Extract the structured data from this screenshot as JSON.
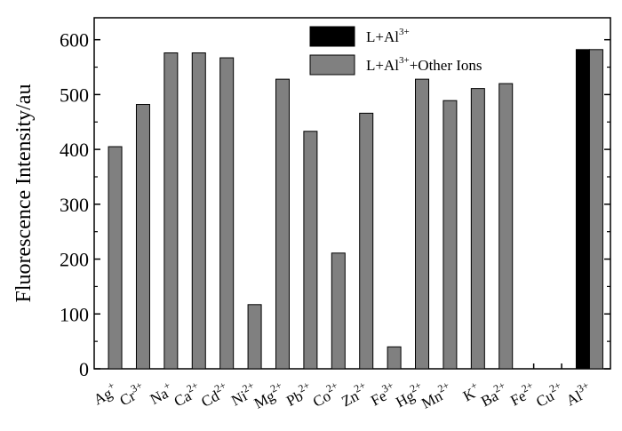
{
  "chart_data": {
    "type": "bar",
    "title": "",
    "xlabel": "",
    "ylabel": "Fluorescence Intensity/au",
    "ylim": [
      0,
      640
    ],
    "yticks": [
      0,
      100,
      200,
      300,
      400,
      500,
      600
    ],
    "categories": [
      {
        "base": "Ag",
        "sup": "+"
      },
      {
        "base": "Cr",
        "sup": "3+"
      },
      {
        "base": "Na",
        "sup": "+"
      },
      {
        "base": "Ca",
        "sup": "2+"
      },
      {
        "base": "Cd",
        "sup": "2+"
      },
      {
        "base": "Ni",
        "sup": "2+"
      },
      {
        "base": "Mg",
        "sup": "2+"
      },
      {
        "base": "Pb",
        "sup": "2+"
      },
      {
        "base": "Co",
        "sup": "2+"
      },
      {
        "base": "Zn",
        "sup": "2+"
      },
      {
        "base": "Fe",
        "sup": "3+"
      },
      {
        "base": "Hg",
        "sup": "2+"
      },
      {
        "base": "Mn",
        "sup": "2+"
      },
      {
        "base": "K",
        "sup": "+"
      },
      {
        "base": "Ba",
        "sup": "2+"
      },
      {
        "base": "Fe",
        "sup": "2+"
      },
      {
        "base": "Cu",
        "sup": "2+"
      },
      {
        "base": "Al",
        "sup": "3+"
      }
    ],
    "series": [
      {
        "name": "L+Al3+",
        "legend": {
          "base": "L+Al",
          "sup": "3+",
          "tail": ""
        },
        "color": "#000000",
        "values": [
          null,
          null,
          null,
          null,
          null,
          null,
          null,
          null,
          null,
          null,
          null,
          null,
          null,
          null,
          null,
          null,
          null,
          582
        ]
      },
      {
        "name": "L+Al3++Other Ions",
        "legend": {
          "base": "L+Al",
          "sup": "3+",
          "tail": "+Other Ions"
        },
        "color": "#808080",
        "values": [
          405,
          482,
          576,
          576,
          567,
          117,
          528,
          433,
          211,
          466,
          40,
          528,
          489,
          511,
          520,
          0,
          0,
          582
        ]
      }
    ],
    "legend_position": "top-right",
    "grid": false
  }
}
